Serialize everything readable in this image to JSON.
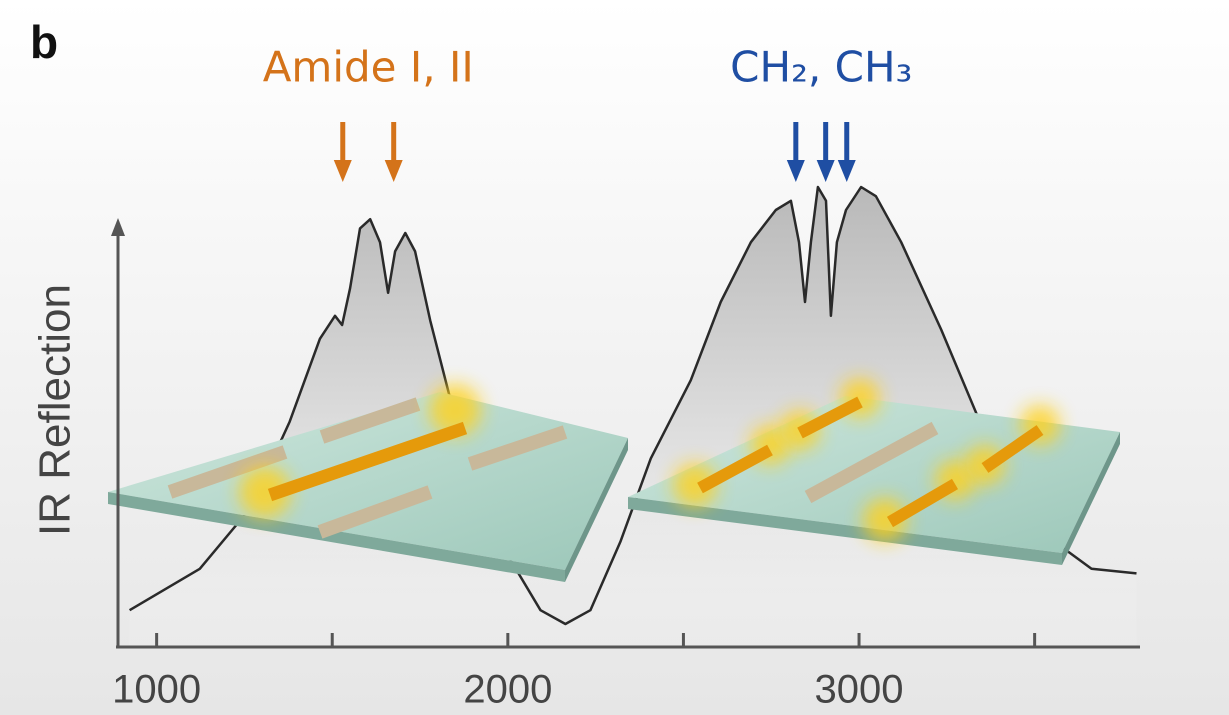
{
  "chart_data": {
    "type": "line",
    "panel_label": "b",
    "ylabel": "IR Reflection",
    "x": [
      923,
      1123,
      1265,
      1379,
      1465,
      1508,
      1528,
      1551,
      1579,
      1608,
      1636,
      1659,
      1679,
      1708,
      1736,
      1779,
      1836,
      1922,
      2007,
      2093,
      2164,
      2235,
      2321,
      2407,
      2521,
      2606,
      2692,
      2763,
      2806,
      2829,
      2846,
      2863,
      2883,
      2906,
      2920,
      2937,
      2963,
      3006,
      3048,
      3120,
      3234,
      3377,
      3519,
      3662,
      3790
    ],
    "values": [
      0.08,
      0.17,
      0.3,
      0.49,
      0.67,
      0.72,
      0.7,
      0.78,
      0.91,
      0.93,
      0.88,
      0.77,
      0.86,
      0.9,
      0.86,
      0.71,
      0.54,
      0.34,
      0.19,
      0.08,
      0.05,
      0.08,
      0.23,
      0.41,
      0.58,
      0.75,
      0.88,
      0.95,
      0.97,
      0.88,
      0.75,
      0.88,
      1.0,
      0.97,
      0.72,
      0.88,
      0.95,
      1.0,
      0.98,
      0.88,
      0.69,
      0.43,
      0.25,
      0.17,
      0.16
    ],
    "color": "#2a2a2a",
    "xlim": [
      890,
      3800
    ],
    "ylim": [
      0,
      1
    ],
    "xticks": [
      1000,
      2000,
      3000
    ],
    "xminor_ticks": [
      1500,
      2500,
      3500
    ],
    "annotations": [
      {
        "text": "Amide I, II",
        "color": "#d4731a",
        "arrows": [
          1530,
          1675
        ]
      },
      {
        "text": "CH₂, CH₃",
        "color": "#1f4ea3",
        "arrows": [
          2820,
          2905,
          2965
        ]
      }
    ]
  }
}
